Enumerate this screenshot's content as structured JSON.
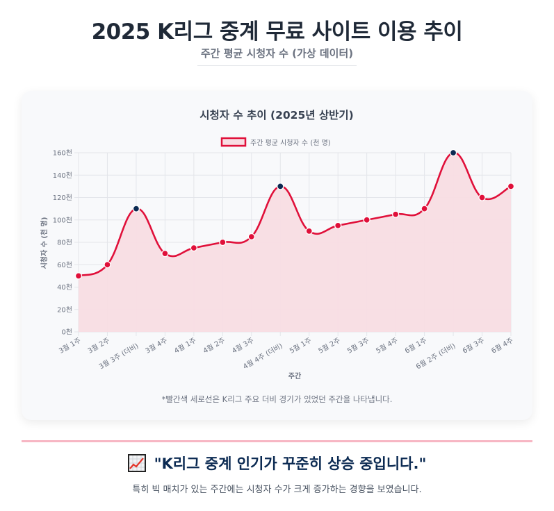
{
  "header": {
    "title": "2025 K리그 중계 무료 사이트 이용 추이",
    "subtitle": "주간 평균 시청자 수 (가상 데이터)"
  },
  "colors": {
    "line": "#e0103a",
    "fill": "#f8dde3",
    "derby_point": "#0b2a52",
    "divider": "#f7b6c3",
    "conclusion_text": "#0b2a52"
  },
  "chart_note": "*빨간색 세로선은 K리그 주요 더비 경기가 있었던 주간을 나타냅니다.",
  "conclusion": {
    "icon": "chart-increasing-icon",
    "headline": "\"K리그 중계 인기가 꾸준히 상승 중입니다.\"",
    "detail": "특히 빅 매치가 있는 주간에는 시청자 수가 크게 증가하는 경향을 보였습니다."
  },
  "chart_data": {
    "type": "line",
    "title": "시청자 수 추이 (2025년 상반기)",
    "legend": [
      "주간 평균 시청자 수 (천 명)"
    ],
    "legend_position": "top",
    "xlabel": "주간",
    "ylabel": "시청자 수 (천 명)",
    "ylim": [
      0,
      160
    ],
    "y_ticks": [
      "0천",
      "20천",
      "40천",
      "60천",
      "80천",
      "100천",
      "120천",
      "140천",
      "160천"
    ],
    "y_tick_values": [
      0,
      20,
      40,
      60,
      80,
      100,
      120,
      140,
      160
    ],
    "grid": true,
    "filled": true,
    "categories": [
      "3월 1주",
      "3월 2주",
      "3월 3주 (더비)",
      "3월 4주",
      "4월 1주",
      "4월 2주",
      "4월 3주",
      "4월 4주 (더비)",
      "5월 1주",
      "5월 2주",
      "5월 3주",
      "5월 4주",
      "6월 1주",
      "6월 2주 (더비)",
      "6월 3주",
      "6월 4주"
    ],
    "series": [
      {
        "name": "주간 평균 시청자 수 (천 명)",
        "values": [
          50,
          60,
          110,
          70,
          75,
          80,
          85,
          130,
          90,
          95,
          100,
          105,
          110,
          160,
          120,
          130
        ]
      }
    ],
    "highlight_indices": [
      2,
      7,
      13
    ]
  }
}
